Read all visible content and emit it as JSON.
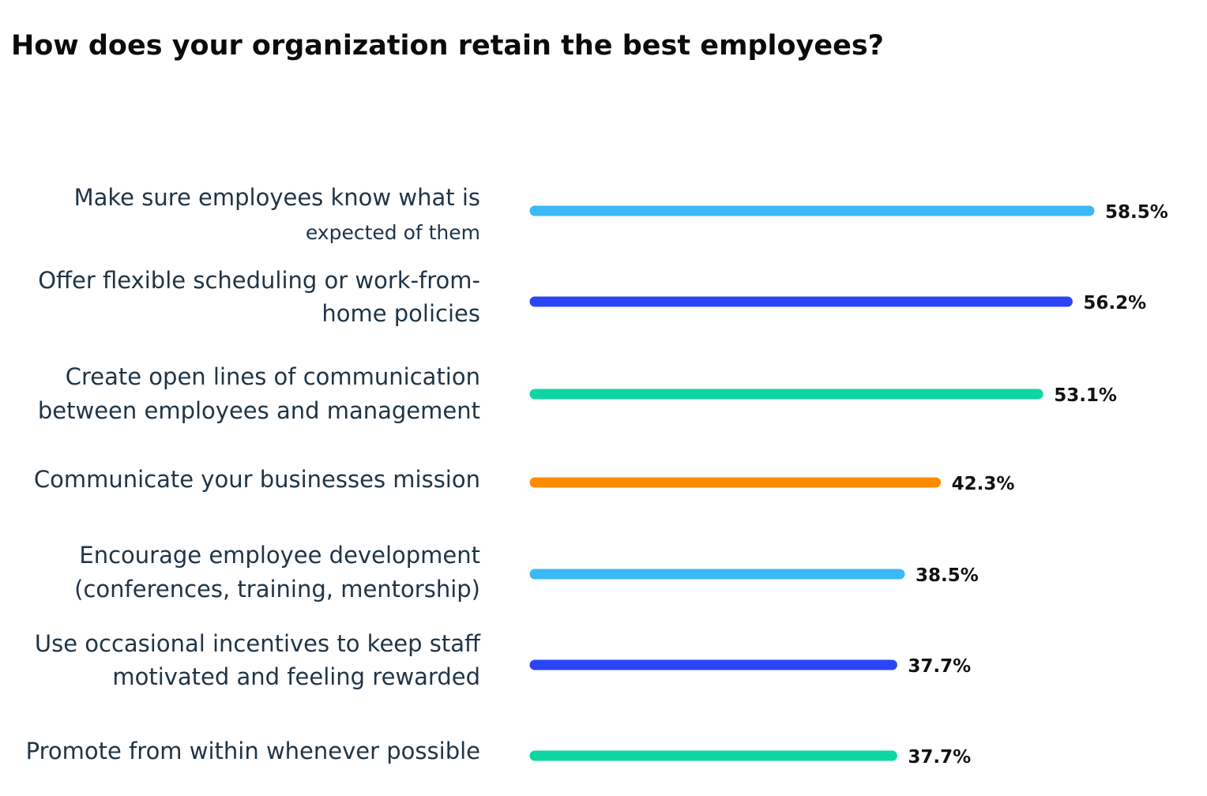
{
  "chart_data": {
    "type": "bar",
    "orientation": "horizontal",
    "title": "How does your organization retain the best employees?",
    "categories": [
      [
        "Make sure employees know what is",
        "expected of them"
      ],
      [
        "Offer flexible scheduling or work-from-",
        "home policies"
      ],
      [
        "Create open lines of communication",
        "between employees and management"
      ],
      [
        "Communicate your businesses mission"
      ],
      [
        "Encourage employee development",
        "(conferences, training, mentorship)"
      ],
      [
        "Use occasional incentives to keep staff",
        "motivated and feeling rewarded"
      ],
      [
        "Promote from within whenever possible"
      ]
    ],
    "values": [
      58.5,
      56.2,
      53.1,
      42.3,
      38.5,
      37.7,
      37.7
    ],
    "value_labels": [
      "58.5%",
      "56.2%",
      "53.1%",
      "42.3%",
      "38.5%",
      "37.7%",
      "37.7%"
    ],
    "colors": [
      "#3bb8f5",
      "#2b44f5",
      "#0dd6a3",
      "#ff8c00",
      "#3bb8f5",
      "#2b44f5",
      "#0dd6a3"
    ],
    "xlabel": "",
    "ylabel": "",
    "grid": false,
    "legend": "none"
  }
}
